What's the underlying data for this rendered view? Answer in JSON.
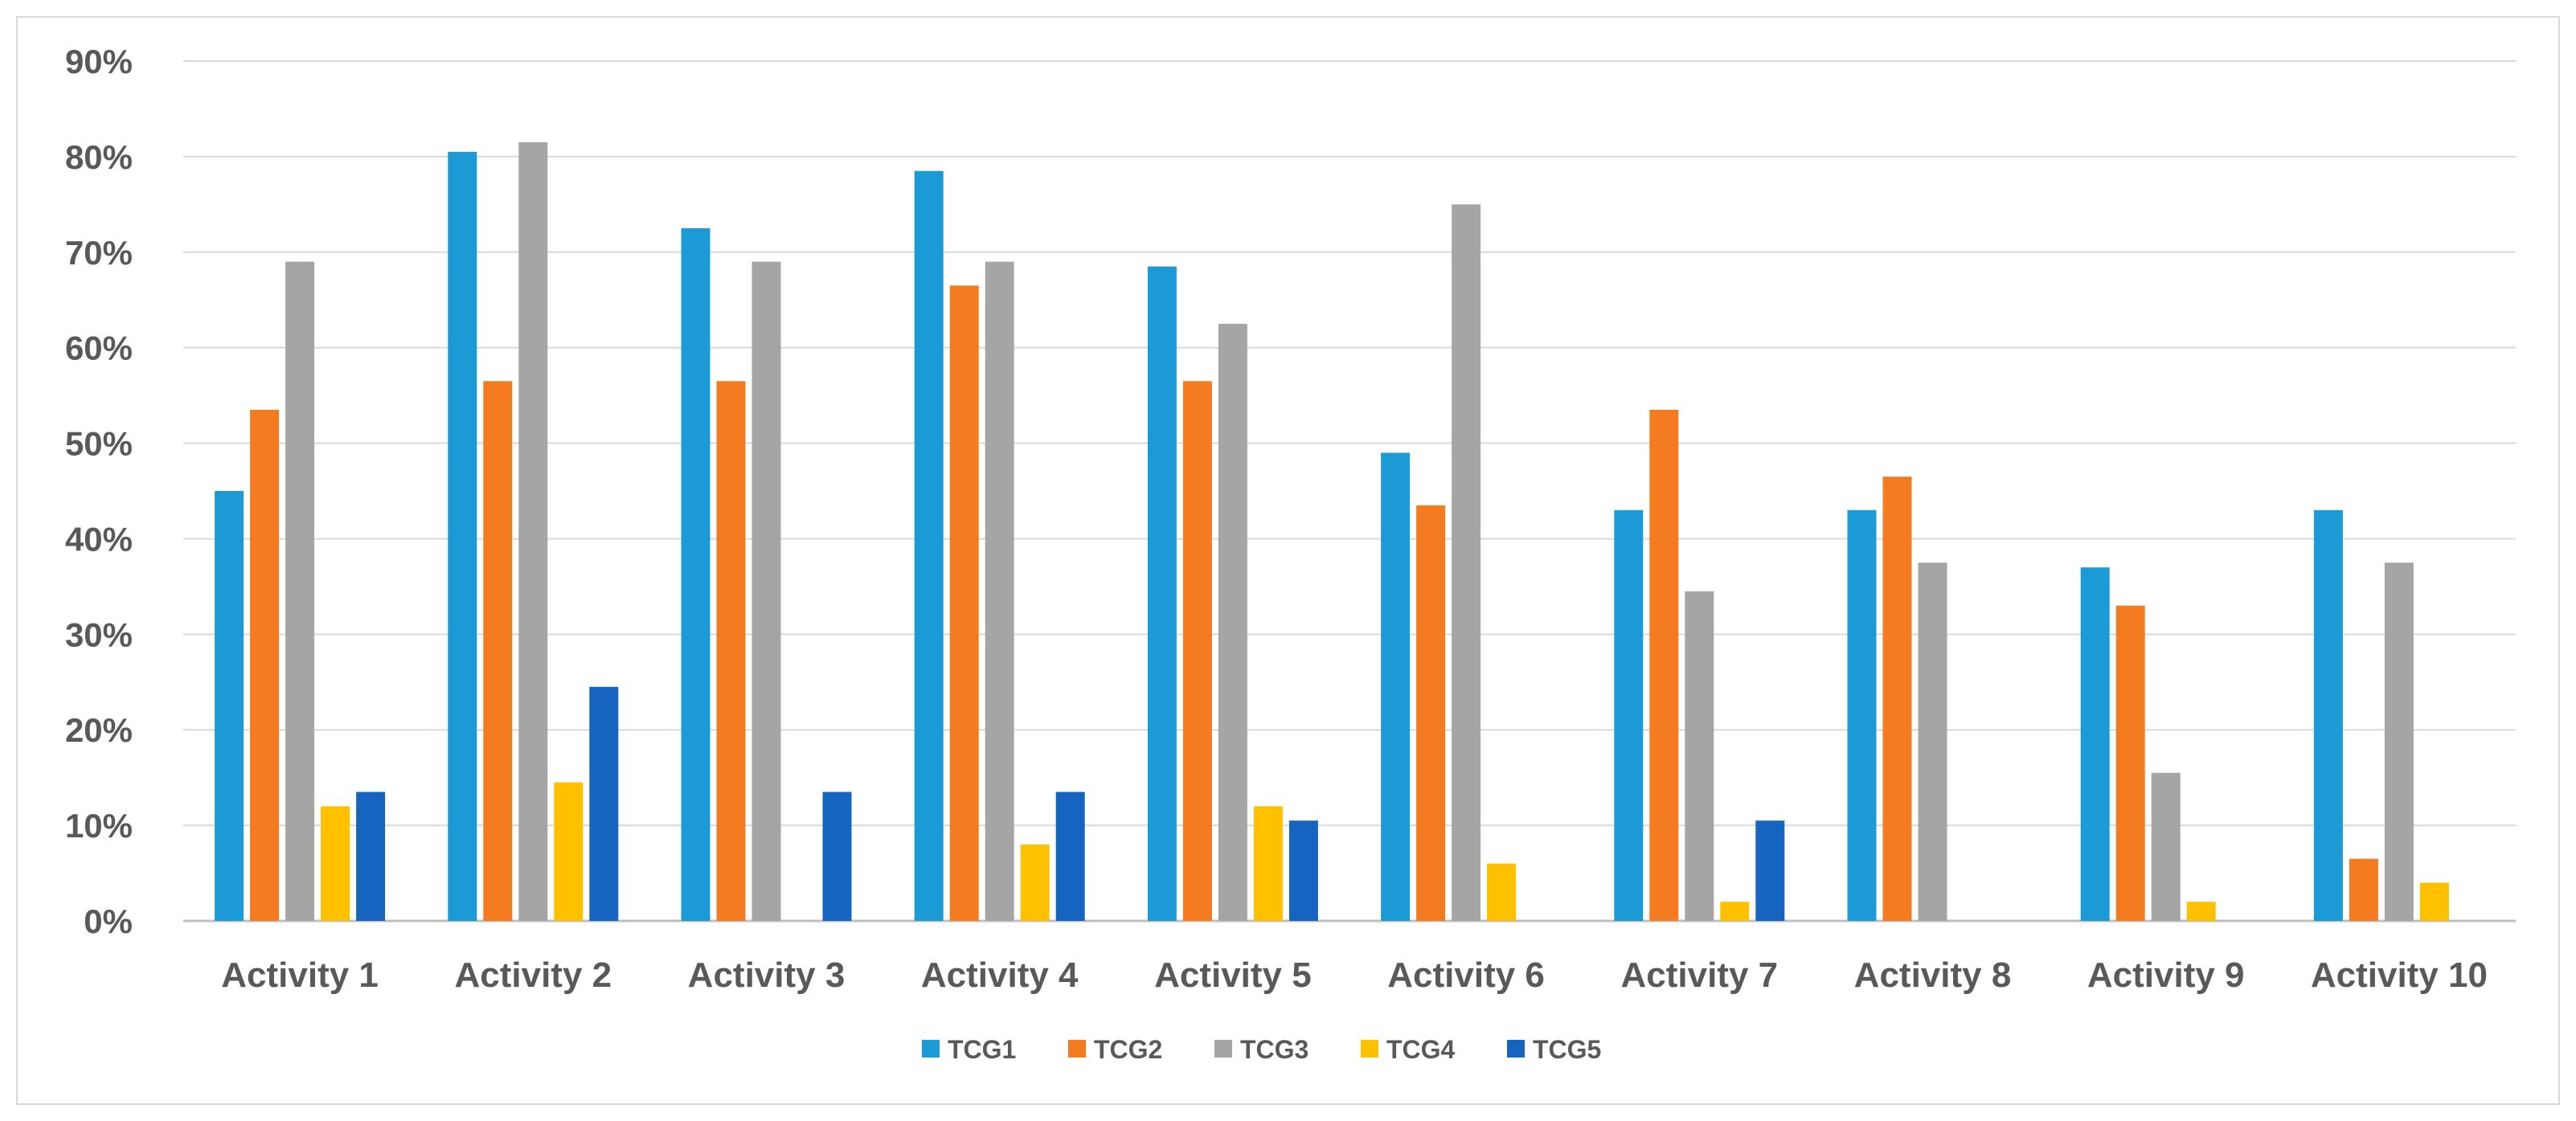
{
  "chart_data": {
    "type": "bar",
    "title": "",
    "xlabel": "",
    "ylabel": "",
    "ylim": [
      0,
      90
    ],
    "yticks": [
      "0%",
      "10%",
      "20%",
      "30%",
      "40%",
      "50%",
      "60%",
      "70%",
      "80%",
      "90%"
    ],
    "grid": true,
    "legend_position": "bottom",
    "categories": [
      "Activity 1",
      "Activity 2",
      "Activity 3",
      "Activity 4",
      "Activity 5",
      "Activity 6",
      "Activity 7",
      "Activity 8",
      "Activity 9",
      "Activity 10"
    ],
    "series": [
      {
        "name": "TCG1",
        "color": "#1b9ad6",
        "values": [
          45,
          80.5,
          72.5,
          78.5,
          68.5,
          49,
          43,
          43,
          37,
          43
        ]
      },
      {
        "name": "TCG2",
        "color": "#f47b20",
        "values": [
          53.5,
          56.5,
          56.5,
          66.5,
          56.5,
          43.5,
          53.5,
          46.5,
          33,
          6.5
        ]
      },
      {
        "name": "TCG3",
        "color": "#a5a5a5",
        "values": [
          69,
          81.5,
          69,
          69,
          62.5,
          75,
          34.5,
          37.5,
          15.5,
          37.5
        ]
      },
      {
        "name": "TCG4",
        "color": "#ffc000",
        "values": [
          12,
          14.5,
          0,
          8,
          12,
          6,
          2,
          0,
          2,
          4
        ]
      },
      {
        "name": "TCG5",
        "color": "#1565c0",
        "values": [
          13.5,
          24.5,
          13.5,
          13.5,
          10.5,
          0,
          10.5,
          0,
          0,
          0
        ]
      }
    ]
  }
}
